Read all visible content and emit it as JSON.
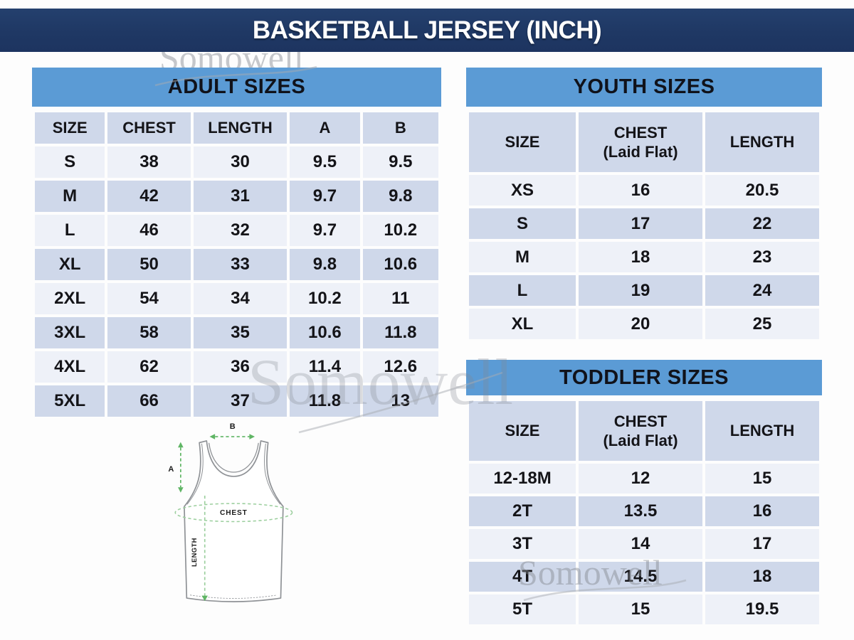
{
  "title_bar": {
    "text": "BASKETBALL JERSEY (INCH)"
  },
  "watermark": {
    "text": "Somowell"
  },
  "tables": {
    "adult": {
      "title": "ADULT SIZES",
      "columns": [
        "SIZE",
        "CHEST",
        "LENGTH",
        "A",
        "B"
      ],
      "rows": [
        [
          "S",
          "38",
          "30",
          "9.5",
          "9.5"
        ],
        [
          "M",
          "42",
          "31",
          "9.7",
          "9.8"
        ],
        [
          "L",
          "46",
          "32",
          "9.7",
          "10.2"
        ],
        [
          "XL",
          "50",
          "33",
          "9.8",
          "10.6"
        ],
        [
          "2XL",
          "54",
          "34",
          "10.2",
          "11"
        ],
        [
          "3XL",
          "58",
          "35",
          "10.6",
          "11.8"
        ],
        [
          "4XL",
          "62",
          "36",
          "11.4",
          "12.6"
        ],
        [
          "5XL",
          "66",
          "37",
          "11.8",
          "13"
        ]
      ]
    },
    "youth": {
      "title": "YOUTH SIZES",
      "columns": [
        "SIZE",
        "CHEST\n(Laid Flat)",
        "LENGTH"
      ],
      "rows": [
        [
          "XS",
          "16",
          "20.5"
        ],
        [
          "S",
          "17",
          "22"
        ],
        [
          "M",
          "18",
          "23"
        ],
        [
          "L",
          "19",
          "24"
        ],
        [
          "XL",
          "20",
          "25"
        ]
      ]
    },
    "toddler": {
      "title": "TODDLER SIZES",
      "columns": [
        "SIZE",
        "CHEST\n(Laid Flat)",
        "LENGTH"
      ],
      "rows": [
        [
          "12-18M",
          "12",
          "15"
        ],
        [
          "2T",
          "13.5",
          "16"
        ],
        [
          "3T",
          "14",
          "17"
        ],
        [
          "4T",
          "14.5",
          "18"
        ],
        [
          "5T",
          "15",
          "19.5"
        ]
      ]
    }
  },
  "diagram": {
    "label_a": "A",
    "label_b": "B",
    "label_chest": "CHEST",
    "label_length": "LENGTH"
  },
  "colors": {
    "title_bar_bg": "#1f3864",
    "section_header_bg": "#5b9bd5",
    "row_dark": "#cfd8ea",
    "row_light": "#eef1f8",
    "arrow_green": "#5fb564",
    "measure_green_light": "#9ccf9e",
    "jersey_outline": "#8f9296",
    "watermark_gray": "#83878f"
  }
}
